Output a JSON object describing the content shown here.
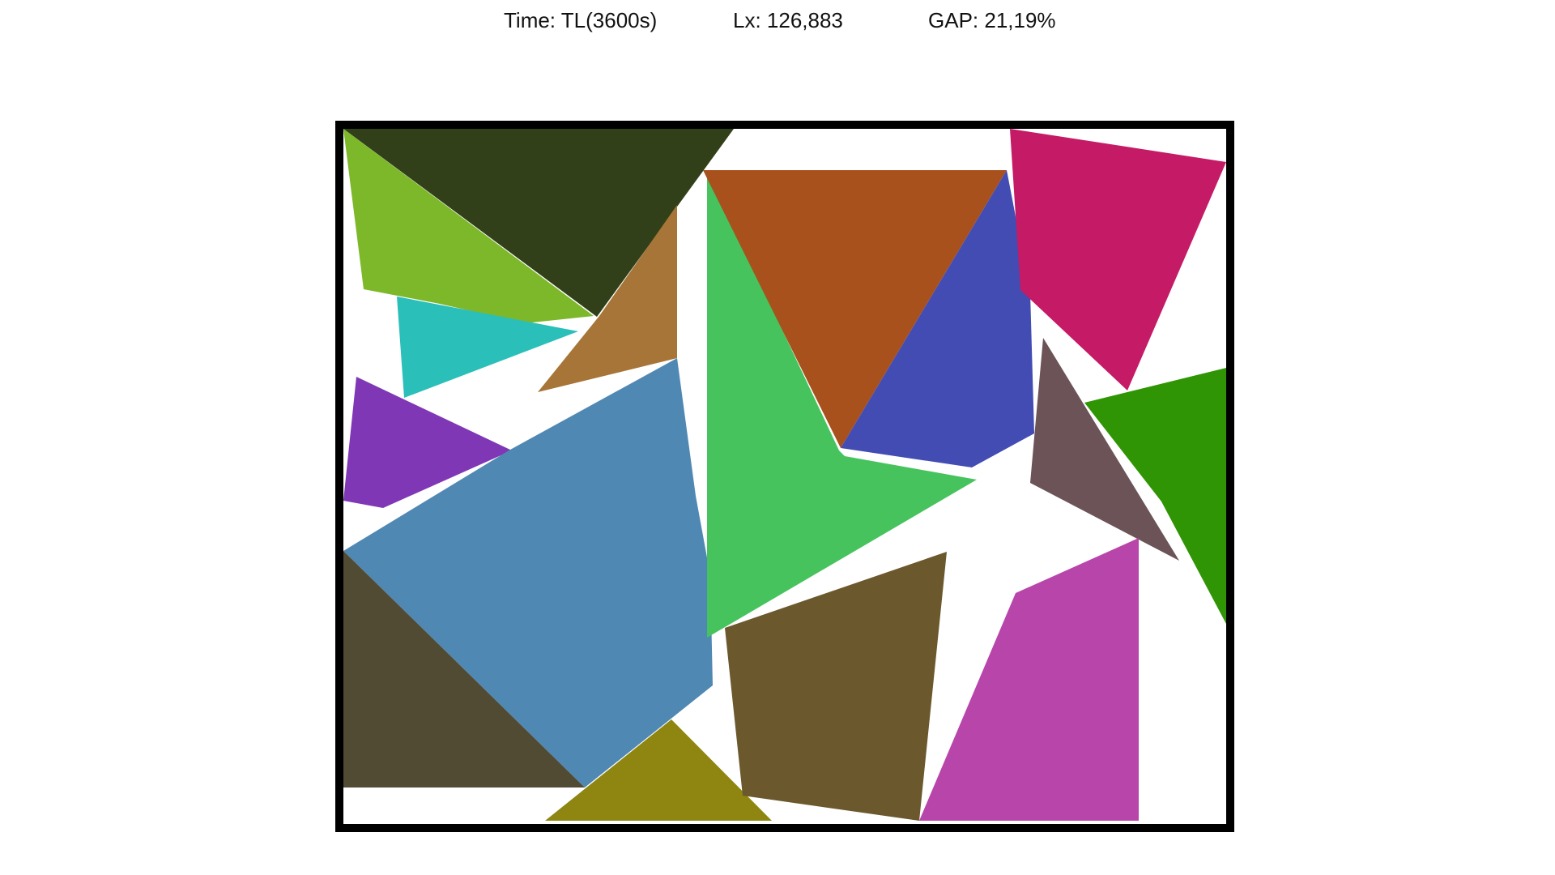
{
  "header": {
    "time": "Time: TL(3600s)",
    "lx": "Lx: 126,883",
    "gap": "GAP: 21,19%"
  },
  "pieces": [
    {
      "name": "dark-olive-triangle",
      "color": "#32401a"
    },
    {
      "name": "yellow-green-triangle",
      "color": "#7db82a"
    },
    {
      "name": "teal-triangle",
      "color": "#2bbfba"
    },
    {
      "name": "brown-quad",
      "color": "#a67537"
    },
    {
      "name": "purple-triangle",
      "color": "#7f37b5"
    },
    {
      "name": "steel-blue-polygon",
      "color": "#5088b4"
    },
    {
      "name": "dark-brown-triangle",
      "color": "#514b33"
    },
    {
      "name": "mustard-triangle",
      "color": "#8e8610"
    },
    {
      "name": "green-polygon",
      "color": "#47c35e"
    },
    {
      "name": "rust-triangle",
      "color": "#a9511d"
    },
    {
      "name": "indigo-polygon",
      "color": "#424cb3"
    },
    {
      "name": "magenta-quad",
      "color": "#c51a65"
    },
    {
      "name": "gray-brown-triangle",
      "color": "#6b5358"
    },
    {
      "name": "forest-green-triangle",
      "color": "#2f9505"
    },
    {
      "name": "olive-brown-quad",
      "color": "#6b582c"
    },
    {
      "name": "orchid-quad",
      "color": "#b845aa"
    }
  ]
}
